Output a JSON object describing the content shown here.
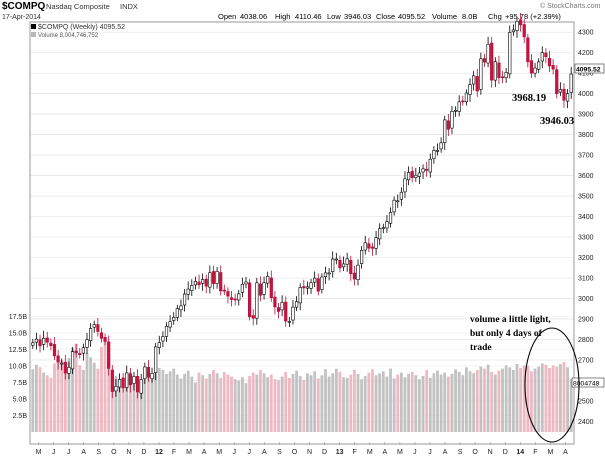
{
  "header": {
    "symbol": "$COMPQ",
    "name": "Nasdaq Composite",
    "exchange": "INDX",
    "date": "17-Apr-2014",
    "open_label": "Open",
    "open": "4038.06",
    "high_label": "High",
    "high": "4110.46",
    "low_label": "Low",
    "low": "3946.03",
    "close_label": "Close",
    "close": "4095.52",
    "volume_label": "Volume",
    "volume": "8.0B",
    "chg_label": "Chg",
    "chg": "+95.78 (+2.39%)",
    "watermark": "© StockCharts.com"
  },
  "legend": {
    "price": "$COMPQ (Weekly) 4095.52",
    "volume": "Volume 8,004,746,752"
  },
  "annotations": {
    "low1": "3968.19",
    "low2": "3946.03",
    "note_line1": "volume a little light,",
    "note_line2": "but only 4 days of",
    "note_line3": "trade"
  },
  "chart_data": {
    "type": "candlestick",
    "frequency": "weekly",
    "price_axis": {
      "ticks": [
        2400,
        2500,
        2600,
        2700,
        2800,
        2900,
        3000,
        3100,
        3200,
        3300,
        3400,
        3500,
        3600,
        3700,
        3800,
        3900,
        4000,
        4100,
        4200,
        4300
      ],
      "ylim": [
        2290,
        4340
      ],
      "last_value_tag": "4095.52"
    },
    "volume_axis": {
      "ticks": [
        "2.5B",
        "5.0B",
        "7.5B",
        "10.0B",
        "12.5B",
        "15.0B",
        "17.5B"
      ],
      "tick_values": [
        2.5,
        5.0,
        7.5,
        10.0,
        12.5,
        15.0,
        17.5
      ],
      "ylim": [
        0,
        20
      ],
      "last_value_tag": "8004748"
    },
    "x_labels": [
      "M",
      "J",
      "J",
      "A",
      "S",
      "O",
      "N",
      "D",
      "12",
      "F",
      "M",
      "A",
      "M",
      "J",
      "J",
      "A",
      "S",
      "O",
      "N",
      "D",
      "13",
      "F",
      "M",
      "A",
      "M",
      "J",
      "J",
      "A",
      "S",
      "O",
      "N",
      "D",
      "14",
      "F",
      "M",
      "A"
    ],
    "closes": [
      2784,
      2802,
      2769,
      2806,
      2787,
      2770,
      2720,
      2690,
      2685,
      2636,
      2664,
      2741,
      2735,
      2726,
      2760,
      2799,
      2854,
      2873,
      2839,
      2806,
      2790,
      2659,
      2546,
      2571,
      2605,
      2564,
      2637,
      2579,
      2620,
      2544,
      2604,
      2666,
      2616,
      2635,
      2764,
      2785,
      2814,
      2865,
      2887,
      2908,
      2951,
      2964,
      3022,
      3046,
      3064,
      3084,
      3067,
      3093,
      3060,
      3126,
      3073,
      3133,
      3037,
      3036,
      3012,
      2995,
      2996,
      3023,
      3070,
      3081,
      2911,
      2904,
      3077,
      3016,
      3077,
      3108,
      3004,
      2959,
      2937,
      2981,
      2890,
      2889,
      2958,
      2985,
      3054,
      3052,
      3057,
      3077,
      3100,
      3036,
      3105,
      3125,
      3125,
      3193,
      3193,
      3150,
      3169,
      3194,
      3121,
      3095,
      3163,
      3235,
      3272,
      3246,
      3245,
      3297,
      3341,
      3346,
      3375,
      3420,
      3480,
      3477,
      3519,
      3584,
      3615,
      3590,
      3602,
      3613,
      3633,
      3625,
      3680,
      3723,
      3723,
      3760,
      3872,
      3826,
      3914,
      3919,
      3960,
      3962,
      4003,
      4044,
      4087,
      4013,
      4170,
      4154,
      4241,
      4066,
      4156,
      4078,
      4079,
      4104,
      4299,
      4311,
      4353,
      4336,
      4277,
      4155,
      4100,
      4125,
      4155,
      4200,
      4180,
      4135,
      4120,
      4000,
      4020,
      3968,
      4000,
      4095.52
    ],
    "volumes": [
      9.5,
      10.2,
      9.8,
      9.0,
      8.6,
      8.2,
      10.4,
      11.5,
      10.9,
      9.9,
      11.2,
      12.8,
      13.4,
      10.1,
      9.4,
      12.0,
      11.3,
      10.5,
      9.6,
      12.9,
      13.6,
      10.8,
      9.2,
      8.5,
      7.3,
      8.0,
      8.6,
      9.1,
      7.7,
      6.9,
      7.9,
      9.0,
      8.9,
      8.3,
      9.1,
      9.7,
      9.4,
      8.8,
      9.2,
      9.6,
      8.7,
      8.1,
      8.8,
      9.3,
      8.4,
      7.5,
      9.0,
      8.6,
      8.1,
      8.8,
      9.4,
      8.9,
      8.2,
      9.1,
      8.7,
      8.4,
      8.0,
      7.8,
      8.3,
      7.4,
      8.5,
      9.0,
      8.7,
      9.4,
      8.9,
      8.3,
      8.7,
      8.0,
      7.9,
      8.4,
      9.1,
      8.2,
      8.8,
      9.3,
      8.5,
      7.9,
      8.9,
      8.6,
      9.2,
      8.1,
      8.6,
      9.5,
      8.4,
      8.9,
      9.6,
      9.1,
      8.3,
      8.2,
      8.7,
      9.4,
      8.8,
      8.0,
      8.5,
      9.0,
      9.5,
      8.6,
      8.9,
      9.2,
      8.4,
      9.6,
      8.1,
      8.7,
      9.0,
      8.3,
      8.8,
      9.1,
      8.6,
      8.0,
      8.5,
      9.4,
      8.2,
      8.9,
      9.3,
      8.7,
      9.0,
      8.4,
      8.8,
      9.5,
      9.1,
      8.6,
      9.8,
      9.2,
      8.9,
      9.4,
      9.9,
      9.6,
      10.2,
      9.1,
      8.7,
      9.3,
      9.6,
      10.1,
      9.8,
      9.4,
      10.3,
      9.7,
      10.1,
      10.0,
      9.2,
      9.6,
      9.9,
      10.4,
      10.2,
      9.7,
      10.1,
      9.9,
      10.3,
      10.6,
      9.8,
      8.0
    ]
  }
}
